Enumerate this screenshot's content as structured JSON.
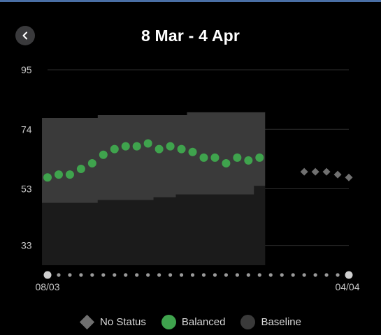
{
  "header": {
    "title": "8 Mar - 4 Apr",
    "back_icon": "chevron-left-icon"
  },
  "colors": {
    "background": "#000000",
    "baseline_band": "#3a3a3a",
    "lower_area": "#1b1b1b",
    "balanced": "#3fa34d",
    "no_status": "#707070",
    "grid": "#2e2e2e",
    "day_dot": "#9a9a9a",
    "endpoint_dot": "#cfcfcf"
  },
  "legend": [
    {
      "label": "No Status",
      "shape": "diamond",
      "color": "#6f6f6f"
    },
    {
      "label": "Balanced",
      "shape": "circle",
      "color": "#3fa34d"
    },
    {
      "label": "Baseline",
      "shape": "circle",
      "color": "#3a3a3a"
    }
  ],
  "chart_data": {
    "type": "scatter",
    "x_start_label": "08/03",
    "x_end_label": "04/04",
    "days": 28,
    "y_ticks": [
      33,
      53,
      74,
      95
    ],
    "ylim": [
      26,
      96
    ],
    "grid": true,
    "baseline_band": {
      "day_start": 0,
      "day_end": 19,
      "upper": [
        78,
        78,
        78,
        78,
        78,
        79,
        79,
        79,
        79,
        79,
        79,
        79,
        79,
        80,
        80,
        80,
        80,
        80,
        80,
        80
      ],
      "lower": [
        48,
        48,
        48,
        48,
        48,
        49,
        49,
        49,
        49,
        49,
        50,
        50,
        51,
        51,
        51,
        51,
        51,
        51,
        51,
        54
      ]
    },
    "series": [
      {
        "name": "Balanced",
        "points": [
          [
            0,
            57
          ],
          [
            1,
            58
          ],
          [
            2,
            58
          ],
          [
            3,
            60
          ],
          [
            4,
            62
          ],
          [
            5,
            65
          ],
          [
            6,
            67
          ],
          [
            7,
            68
          ],
          [
            8,
            68
          ],
          [
            9,
            69
          ],
          [
            10,
            67
          ],
          [
            11,
            68
          ],
          [
            12,
            67
          ],
          [
            13,
            66
          ],
          [
            14,
            64
          ],
          [
            15,
            64
          ],
          [
            16,
            62
          ],
          [
            17,
            64
          ],
          [
            18,
            63
          ],
          [
            19,
            64
          ]
        ]
      },
      {
        "name": "No Status",
        "points": [
          [
            23,
            59
          ],
          [
            24,
            59
          ],
          [
            25,
            59
          ],
          [
            26,
            58
          ],
          [
            27,
            57
          ]
        ]
      }
    ]
  }
}
